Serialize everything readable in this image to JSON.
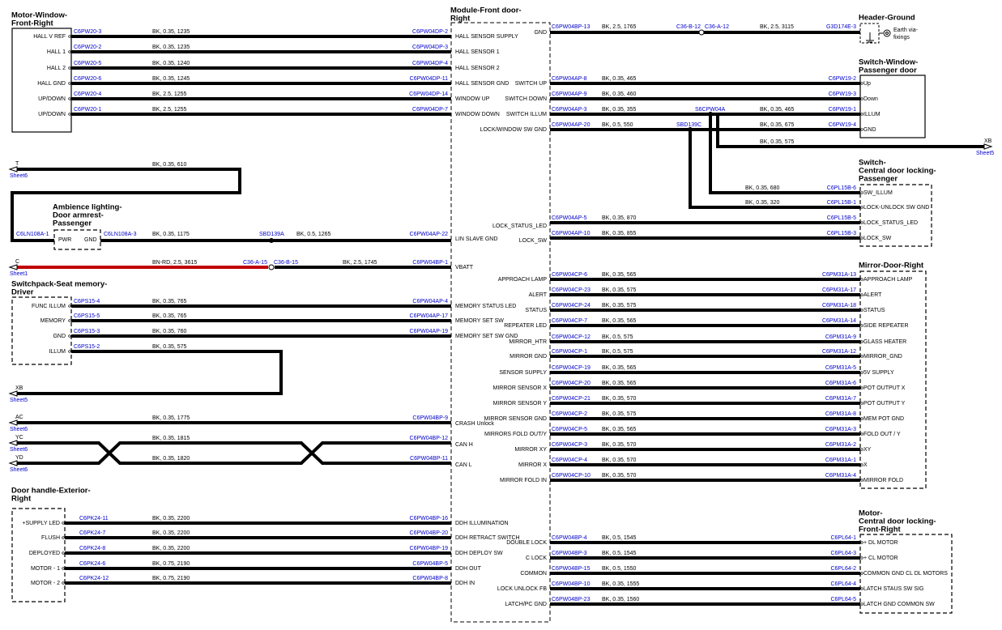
{
  "module": {
    "title": [
      "Module-Front door-",
      "Right"
    ],
    "left_pins": [
      "HALL SENSOR SUPPLY",
      "HALL SENSOR 1",
      "HALL SENSOR 2",
      "HALL SENSOR GND",
      "WINDOW UP",
      "WINDOW DOWN",
      "LIN SLAVE GND",
      "VBATT",
      "MEMORY STATUS LED",
      "MEMORY SET SW",
      "MEMORY SET SW GND",
      "CRASH Unlock",
      "CAN H",
      "CAN L",
      "DDH ILLUMINATION",
      "DDH RETRACT SWITCH",
      "DDH DEPLOY SW",
      "DDH OUT",
      "DDH IN"
    ],
    "right_pins": [
      "GND",
      "SWITCH UP",
      "SWITCH DOWN",
      "SWITCH ILLUM",
      "LOCK/WINDOW SW GND",
      "LOCK_STATUS_LED",
      "LOCK_SW",
      "APPROACH LAMP",
      "ALERT",
      "STATUS",
      "REPEATER LED",
      "MIRROR_HTR",
      "MIRROR GND",
      "SENSOR SUPPLY",
      "MIRROR SENSOR X",
      "MIRROR SENSOR Y",
      "MIRROR SENSOR GND",
      "MIRRORS FOLD OUT/Y",
      "MIRROR XY",
      "MIRROR X",
      "MIRROR FOLD IN",
      "DOUBLE LOCK",
      "C LOCK",
      "COMMON",
      "LOCK UNLOCK FB",
      "LATCH/PC GND"
    ]
  },
  "components": [
    {
      "title": [
        "Motor-Window-",
        "Front-Right"
      ],
      "pins": [
        "HALL V REF",
        "HALL 1",
        "HALL 2",
        "HALL GND",
        "UP/DOWN",
        "UP/DOWN"
      ]
    },
    {
      "title": [
        "Ambience lighting-",
        "Door armrest-",
        "Passenger"
      ],
      "pins": [
        "PWR",
        "GND"
      ]
    },
    {
      "title": [
        "Switchpack-Seat memory-",
        "Driver"
      ],
      "pins": [
        "FUNC ILLUM",
        "MEMORY",
        "GND",
        "ILLUM"
      ]
    },
    {
      "title": [
        "Door handle-Exterior-",
        "Right"
      ],
      "pins": [
        "+SUPPLY LED",
        "FLUSH",
        "DEPLOYED",
        "MOTOR - 1",
        "MOTOR - 2"
      ]
    },
    {
      "title": [
        "Header-Ground"
      ],
      "pins": [
        "Earth via-",
        "fixings"
      ]
    },
    {
      "title": [
        "Switch-Window-",
        "Passenger door"
      ],
      "pins": [
        "Up",
        "Down",
        "ILLUM",
        "GND"
      ]
    },
    {
      "title": [
        "Switch-",
        "Central door locking-",
        "Passenger"
      ],
      "pins": [
        "SW_ILLUM",
        "LOCK-UNLOCK SW GND",
        "LOCK_STATUS_LED",
        "LOCK_SW"
      ]
    },
    {
      "title": [
        "Mirror-Door-Right"
      ],
      "pins": [
        "APPROACH LAMP",
        "ALERT",
        "STATUS",
        "SIDE REPEATER",
        "GLASS HEATER",
        "MIRROR_GND",
        "5V SUPPLY",
        "POT OUTPUT X",
        "POT OUTPUT Y",
        "MEM POT GND",
        "FOLD OUT / Y",
        "XY",
        "X",
        "MIRROR FOLD"
      ]
    },
    {
      "title": [
        "Motor-",
        "Central door locking-",
        "Front-Right"
      ],
      "pins": [
        "+ DL MOTOR",
        "+ CL MOTOR",
        "COMMON GND CL DL MOTORS",
        "LATCH STAUS SW SIG",
        "LATCH GND COMMON SW"
      ]
    }
  ],
  "wires": [
    [
      "C6PW20-3",
      "BK, 0.35, 1235",
      "C6PW04DP-2"
    ],
    [
      "C6PW20-2",
      "BK, 0.35, 1235",
      "C6PW04DP-3"
    ],
    [
      "C6PW20-5",
      "BK, 0.35, 1240",
      "C6PW04DP-4"
    ],
    [
      "C6PW20-6",
      "BK, 0.35, 1245",
      "C6PW04DP-11"
    ],
    [
      "C6PW20-4",
      "BK, 2.5, 1255",
      "C6PW04DP-14"
    ],
    [
      "C6PW20-1",
      "BK, 2.5, 1255",
      "C6PW04DP-7"
    ],
    [
      "BK, 0.35, 610",
      "C6LN108A-1"
    ],
    [
      "C6LN108A-3",
      "BK, 0.35, 1175",
      "SBD139A",
      "BK, 0.5, 1265",
      "C6PW04AP-22"
    ],
    [
      "BN-RD, 2.5, 3615",
      "C36-A-15",
      "C36-B-15",
      "BK, 2.5, 1745",
      "C6PW04BP-1"
    ],
    [
      "C6PS15-4",
      "BK, 0.35, 765",
      "C6PW04AP-4"
    ],
    [
      "C6PS15-5",
      "BK, 0.35, 765",
      "C6PW04AP-17"
    ],
    [
      "C6PS15-3",
      "BK, 0.35, 760",
      "C6PW04AP-19"
    ],
    [
      "C6PS15-2",
      "BK, 0.35, 575"
    ],
    [
      "BK, 0.35, 1775",
      "C6PW04BP-9"
    ],
    [
      "BK, 0.35, 1815",
      "C6PW04BP-12"
    ],
    [
      "BK, 0.35, 1820",
      "C6PW04BP-11"
    ],
    [
      "C6PK24-11",
      "BK, 0.35, 2200",
      "C6PW04BP-16"
    ],
    [
      "C6PK24-7",
      "BK, 0.35, 2200",
      "C6PW04BP-20"
    ],
    [
      "C6PK24-8",
      "BK, 0.35, 2200",
      "C6PW04BP-19"
    ],
    [
      "C6PK24-6",
      "BK, 0.75, 2190",
      "C6PW04BP-5"
    ],
    [
      "C6PK24-12",
      "BK, 0.75, 2190",
      "C6PW04BP-8"
    ],
    [
      "C6PW04BP-13",
      "BK, 2.5, 1765",
      "C36-B-12",
      "C36-A-12",
      "BK, 2.5, 3115",
      "G3D174E-3"
    ],
    [
      "C6PW04AP-8",
      "BK, 0.35, 465",
      "C6PW19-2"
    ],
    [
      "C6PW04AP-9",
      "BK, 0.35, 460",
      "C6PW19-3"
    ],
    [
      "C6PW04AP-3",
      "BK, 0.35, 355",
      "S6CPW04A",
      "BK, 0.35, 465",
      "C6PW19-1"
    ],
    [
      "C6PW04AP-20",
      "BK, 0.5, 550",
      "SBD139C",
      "BK, 0.35, 675",
      "C6PW19-4"
    ],
    [
      "BK, 0.35, 575"
    ],
    [
      "BK, 0.35, 680",
      "C6PL15B-6"
    ],
    [
      "BK, 0.35, 320",
      "C6PL15B-1"
    ],
    [
      "C6PW04AP-5",
      "BK, 0.35, 870",
      "C6PL15B-5"
    ],
    [
      "C6PW04AP-10",
      "BK, 0.35, 855",
      "C6PL15B-3"
    ],
    [
      "C6PW04CP-6",
      "BK, 0.35, 565",
      "C6PM31A-13"
    ],
    [
      "C6PW04CP-23",
      "BK, 0.35, 575",
      "C6PM31A-17"
    ],
    [
      "C6PW04CP-24",
      "BK, 0.35, 575",
      "C6PM31A-18"
    ],
    [
      "C6PW04CP-7",
      "BK, 0.35, 565",
      "C6PM31A-14"
    ],
    [
      "C6PW04CP-12",
      "BK, 0.5, 575",
      "C6PM31A-9"
    ],
    [
      "C6PW04CP-1",
      "BK, 0.5, 575",
      "C6PM31A-12"
    ],
    [
      "C6PW04CP-19",
      "BK, 0.35, 565",
      "C6PM31A-5"
    ],
    [
      "C6PW04CP-20",
      "BK, 0.35, 565",
      "C6PM31A-6"
    ],
    [
      "C6PW04CP-21",
      "BK, 0.35, 570",
      "C6PM31A-7"
    ],
    [
      "C6PW04CP-2",
      "BK, 0.35, 575",
      "C6PM31A-8"
    ],
    [
      "C6PW04CP-5",
      "BK, 0.35, 565",
      "C6PM31A-3"
    ],
    [
      "C6PW04CP-3",
      "BK, 0.35, 570",
      "C6PM31A-2"
    ],
    [
      "C6PW04CP-4",
      "BK, 0.35, 570",
      "C6PM31A-1"
    ],
    [
      "C6PW04CP-10",
      "BK, 0.35, 570",
      "C6PM31A-4"
    ],
    [
      "C6PW04BP-4",
      "BK, 0.5, 1545",
      "C6PL64-1"
    ],
    [
      "C6PW04BP-3",
      "BK, 0.5, 1545",
      "C6PL64-3"
    ],
    [
      "C6PW04BP-15",
      "BK, 0.5, 1550",
      "C6PL64-2"
    ],
    [
      "C6PW04BP-10",
      "BK, 0.35, 1555",
      "C6PL64-4"
    ],
    [
      "C6PW04BP-23",
      "BK, 0.35, 1560",
      "C6PL64-5"
    ]
  ],
  "offsheet": [
    {
      "label": "T",
      "sheet": "Sheet6"
    },
    {
      "label": "C",
      "sheet": "Sheet1"
    },
    {
      "label": "XB",
      "sheet": "Sheet5"
    },
    {
      "label": "AC",
      "sheet": "Sheet6"
    },
    {
      "label": "YC",
      "sheet": "Sheet6"
    },
    {
      "label": "YD",
      "sheet": "Sheet6"
    },
    {
      "label": "XB",
      "sheet": "Sheet5"
    }
  ]
}
